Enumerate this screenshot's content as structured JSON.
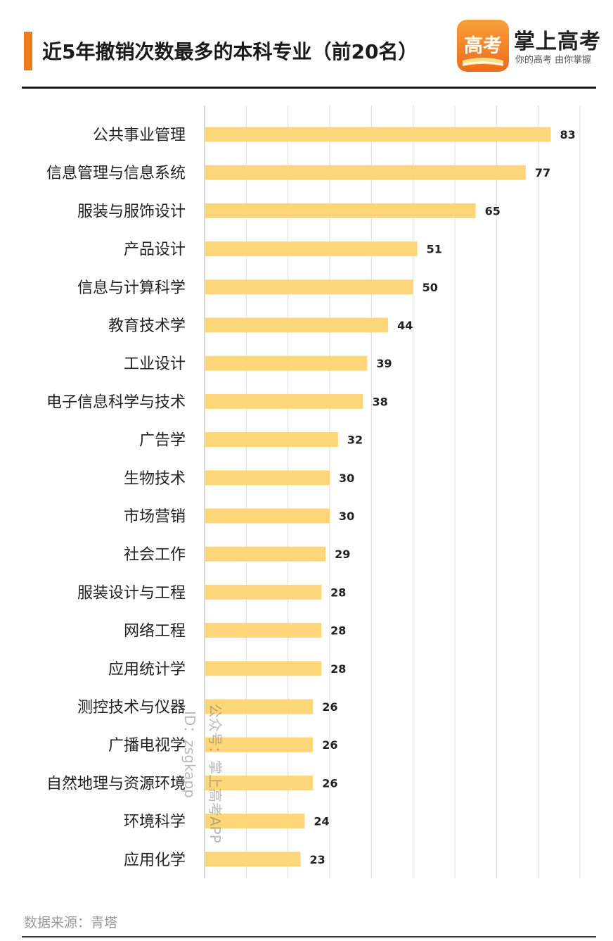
{
  "header": {
    "title": "近5年撤销次数最多的本科专业（前20名）",
    "logo_glyph": "高考",
    "logo_text": "掌上高考",
    "logo_slogan": "你的高考 由你掌握",
    "accent_color": "#f07a1f"
  },
  "watermark": {
    "line1": "公众号：掌上高考APP",
    "line2": "ID：zsgkapp"
  },
  "source": "数据来源：青塔",
  "colors": {
    "bar": "#fdd679",
    "grid": "#dddddd",
    "axis": "#c8c8c8",
    "label": "#222222"
  },
  "chart_data": {
    "type": "bar",
    "orientation": "horizontal",
    "title": "近5年撤销次数最多的本科专业（前20名）",
    "xlabel": "",
    "ylabel": "",
    "xlim": [
      0,
      90
    ],
    "grid": true,
    "data_labels": true,
    "categories": [
      "公共事业管理",
      "信息管理与信息系统",
      "服装与服饰设计",
      "产品设计",
      "信息与计算科学",
      "教育技术学",
      "工业设计",
      "电子信息科学与技术",
      "广告学",
      "生物技术",
      "市场营销",
      "社会工作",
      "服装设计与工程",
      "网络工程",
      "应用统计学",
      "测控技术与仪器",
      "广播电视学",
      "自然地理与资源环境",
      "环境科学",
      "应用化学"
    ],
    "values": [
      83,
      77,
      65,
      51,
      50,
      44,
      39,
      38,
      32,
      30,
      30,
      29,
      28,
      28,
      28,
      26,
      26,
      26,
      24,
      23
    ]
  }
}
